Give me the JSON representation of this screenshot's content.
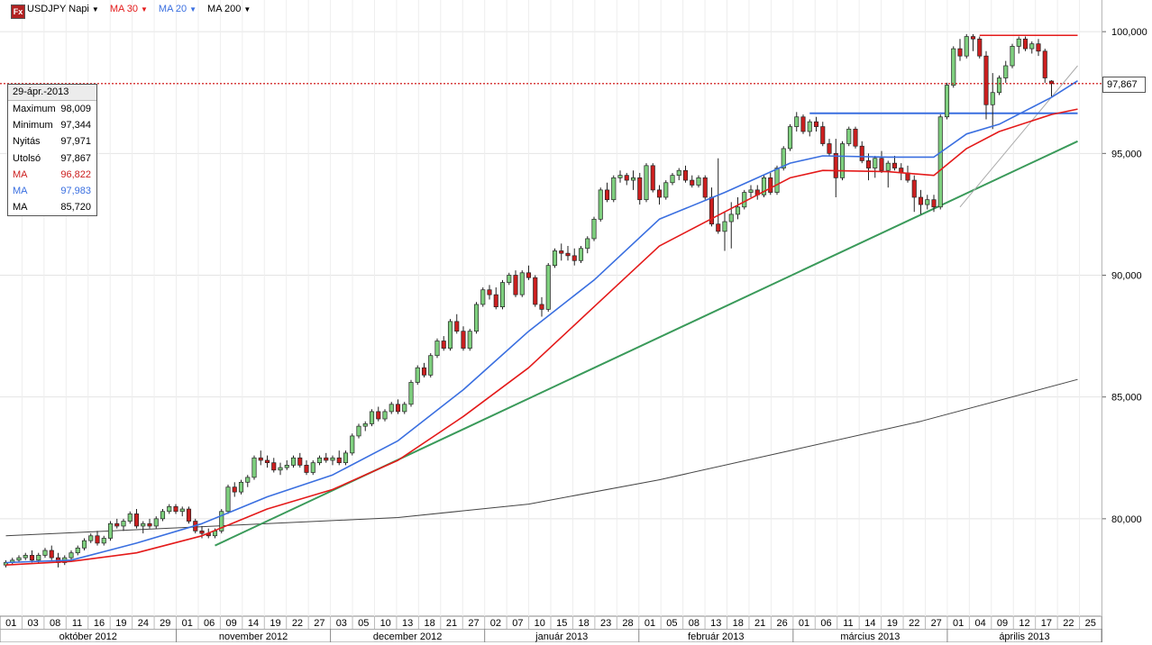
{
  "toolbar": {
    "logo": "Fx",
    "symbol": "USDJPY Napi",
    "ma1": "MA 30",
    "ma2": "MA 20",
    "ma3": "MA 200"
  },
  "colors": {
    "up_candle": "#7fd07f",
    "down_candle": "#cc1f1f",
    "ma30": "#e41a1a",
    "ma20": "#3a6fe0",
    "ma200": "#444444",
    "resistance": "#e41a1a",
    "support": "#3a6fe0",
    "trend_green": "#3a9a5a",
    "trend_grey": "#aaaaaa",
    "last_price_line": "#cc0000"
  },
  "info_box": {
    "date": "29-ápr.-2013",
    "rows": [
      {
        "label": "Maximum",
        "value": "98,009",
        "color": "#000000"
      },
      {
        "label": "Minimum",
        "value": "97,344",
        "color": "#000000"
      },
      {
        "label": "Nyitás",
        "value": "97,971",
        "color": "#000000"
      },
      {
        "label": "Utolsó",
        "value": "97,867",
        "color": "#000000"
      },
      {
        "label": "MA",
        "value": "96,822",
        "color": "#cc1f1f"
      },
      {
        "label": "MA",
        "value": "97,983",
        "color": "#3a6fe0"
      },
      {
        "label": "MA",
        "value": "85,720",
        "color": "#000000"
      }
    ]
  },
  "last_price_label": "97,867",
  "chart_data": {
    "type": "candlestick",
    "ylim": [
      76.0,
      101.3
    ],
    "y_ticks": [
      80,
      85,
      90,
      95,
      100
    ],
    "y_tick_labels": [
      "80,000",
      "85,000",
      "90,000",
      "95,000",
      "100,000"
    ],
    "y_axis_position": "right",
    "grid": true,
    "x_day_labels": [
      "01",
      "03",
      "08",
      "11",
      "16",
      "19",
      "24",
      "29",
      "01",
      "06",
      "09",
      "14",
      "19",
      "22",
      "27",
      "03",
      "05",
      "10",
      "13",
      "18",
      "21",
      "27",
      "02",
      "07",
      "10",
      "15",
      "18",
      "23",
      "28",
      "01",
      "05",
      "08",
      "13",
      "18",
      "21",
      "26",
      "01",
      "06",
      "11",
      "14",
      "19",
      "22",
      "27",
      "01",
      "04",
      "09",
      "12",
      "17",
      "22",
      "25"
    ],
    "x_month_labels": [
      "október 2012",
      "november 2012",
      "december 2012",
      "január 2013",
      "február 2013",
      "március 2013",
      "április 2013"
    ],
    "candles": [
      [
        78.1,
        78.3,
        78.0,
        78.2
      ],
      [
        78.2,
        78.4,
        78.1,
        78.3
      ],
      [
        78.3,
        78.5,
        78.2,
        78.4
      ],
      [
        78.4,
        78.6,
        78.3,
        78.5
      ],
      [
        78.5,
        78.7,
        78.2,
        78.3
      ],
      [
        78.3,
        78.6,
        78.2,
        78.5
      ],
      [
        78.5,
        78.8,
        78.4,
        78.7
      ],
      [
        78.7,
        78.9,
        78.3,
        78.4
      ],
      [
        78.4,
        78.6,
        78.0,
        78.2
      ],
      [
        78.2,
        78.5,
        78.1,
        78.4
      ],
      [
        78.4,
        78.7,
        78.3,
        78.6
      ],
      [
        78.6,
        78.9,
        78.5,
        78.8
      ],
      [
        78.8,
        79.2,
        78.7,
        79.1
      ],
      [
        79.1,
        79.4,
        79.0,
        79.3
      ],
      [
        79.3,
        79.5,
        78.9,
        79.0
      ],
      [
        79.0,
        79.3,
        78.9,
        79.2
      ],
      [
        79.2,
        79.9,
        79.1,
        79.8
      ],
      [
        79.8,
        80.0,
        79.6,
        79.7
      ],
      [
        79.7,
        80.0,
        79.5,
        79.9
      ],
      [
        79.9,
        80.3,
        79.8,
        80.2
      ],
      [
        80.2,
        80.4,
        79.6,
        79.7
      ],
      [
        79.7,
        79.9,
        79.4,
        79.8
      ],
      [
        79.8,
        80.0,
        79.6,
        79.7
      ],
      [
        79.7,
        80.1,
        79.6,
        80.0
      ],
      [
        80.0,
        80.4,
        79.9,
        80.3
      ],
      [
        80.3,
        80.6,
        80.2,
        80.5
      ],
      [
        80.5,
        80.6,
        80.2,
        80.3
      ],
      [
        80.3,
        80.5,
        80.1,
        80.4
      ],
      [
        80.4,
        80.5,
        79.8,
        79.9
      ],
      [
        79.9,
        80.0,
        79.4,
        79.5
      ],
      [
        79.5,
        79.7,
        79.2,
        79.4
      ],
      [
        79.4,
        79.6,
        79.2,
        79.3
      ],
      [
        79.3,
        79.6,
        79.2,
        79.5
      ],
      [
        79.5,
        80.4,
        79.4,
        80.3
      ],
      [
        80.3,
        81.4,
        80.2,
        81.3
      ],
      [
        81.3,
        81.5,
        80.9,
        81.1
      ],
      [
        81.1,
        81.6,
        81.0,
        81.5
      ],
      [
        81.5,
        81.8,
        81.3,
        81.7
      ],
      [
        81.7,
        82.6,
        81.6,
        82.5
      ],
      [
        82.5,
        82.8,
        82.2,
        82.4
      ],
      [
        82.4,
        82.6,
        82.1,
        82.3
      ],
      [
        82.3,
        82.5,
        81.9,
        82.0
      ],
      [
        82.0,
        82.3,
        81.8,
        82.1
      ],
      [
        82.1,
        82.4,
        82.0,
        82.2
      ],
      [
        82.2,
        82.6,
        82.1,
        82.5
      ],
      [
        82.5,
        82.7,
        82.1,
        82.2
      ],
      [
        82.2,
        82.4,
        81.8,
        81.9
      ],
      [
        81.9,
        82.4,
        81.8,
        82.3
      ],
      [
        82.3,
        82.6,
        82.2,
        82.5
      ],
      [
        82.5,
        82.7,
        82.3,
        82.4
      ],
      [
        82.4,
        82.6,
        82.2,
        82.5
      ],
      [
        82.5,
        82.8,
        82.2,
        82.3
      ],
      [
        82.3,
        82.8,
        82.2,
        82.7
      ],
      [
        82.7,
        83.5,
        82.6,
        83.4
      ],
      [
        83.4,
        83.9,
        83.3,
        83.8
      ],
      [
        83.8,
        84.0,
        83.6,
        83.9
      ],
      [
        83.9,
        84.5,
        83.8,
        84.4
      ],
      [
        84.4,
        84.6,
        84.0,
        84.1
      ],
      [
        84.1,
        84.5,
        84.0,
        84.4
      ],
      [
        84.4,
        84.8,
        84.3,
        84.7
      ],
      [
        84.7,
        84.9,
        84.3,
        84.4
      ],
      [
        84.4,
        84.8,
        84.3,
        84.7
      ],
      [
        84.7,
        85.7,
        84.6,
        85.6
      ],
      [
        85.6,
        86.3,
        85.5,
        86.2
      ],
      [
        86.2,
        86.4,
        85.8,
        85.9
      ],
      [
        85.9,
        86.8,
        85.8,
        86.7
      ],
      [
        86.7,
        87.4,
        86.6,
        87.3
      ],
      [
        87.3,
        87.5,
        86.9,
        87.0
      ],
      [
        87.0,
        88.2,
        86.9,
        88.1
      ],
      [
        88.1,
        88.4,
        87.6,
        87.7
      ],
      [
        87.7,
        87.9,
        86.9,
        87.0
      ],
      [
        87.0,
        87.8,
        86.9,
        87.7
      ],
      [
        87.7,
        88.9,
        87.6,
        88.8
      ],
      [
        88.8,
        89.5,
        88.7,
        89.4
      ],
      [
        89.4,
        89.6,
        89.0,
        89.2
      ],
      [
        89.2,
        89.5,
        88.6,
        88.7
      ],
      [
        88.7,
        89.8,
        88.6,
        89.7
      ],
      [
        89.7,
        90.1,
        89.6,
        90.0
      ],
      [
        90.0,
        90.2,
        89.1,
        89.2
      ],
      [
        89.2,
        90.2,
        89.1,
        90.1
      ],
      [
        90.1,
        90.4,
        89.8,
        89.9
      ],
      [
        89.9,
        90.0,
        88.7,
        88.8
      ],
      [
        88.8,
        89.1,
        88.3,
        88.6
      ],
      [
        88.6,
        90.5,
        88.5,
        90.4
      ],
      [
        90.4,
        91.1,
        90.3,
        91.0
      ],
      [
        91.0,
        91.3,
        90.6,
        90.9
      ],
      [
        90.9,
        91.2,
        90.6,
        90.8
      ],
      [
        90.8,
        91.1,
        90.4,
        90.6
      ],
      [
        90.6,
        91.2,
        90.5,
        91.1
      ],
      [
        91.1,
        91.6,
        90.9,
        91.5
      ],
      [
        91.5,
        92.4,
        91.4,
        92.3
      ],
      [
        92.3,
        93.6,
        92.2,
        93.5
      ],
      [
        93.5,
        93.8,
        93.0,
        93.1
      ],
      [
        93.1,
        94.1,
        93.0,
        94.0
      ],
      [
        94.0,
        94.3,
        93.8,
        94.1
      ],
      [
        94.1,
        94.2,
        93.7,
        93.9
      ],
      [
        93.9,
        94.3,
        93.5,
        94.0
      ],
      [
        94.0,
        94.2,
        92.9,
        93.1
      ],
      [
        93.1,
        94.6,
        93.0,
        94.5
      ],
      [
        94.5,
        94.6,
        93.4,
        93.5
      ],
      [
        93.5,
        93.7,
        92.9,
        93.2
      ],
      [
        93.2,
        93.9,
        93.1,
        93.8
      ],
      [
        93.8,
        94.2,
        93.7,
        94.1
      ],
      [
        94.1,
        94.4,
        93.9,
        94.3
      ],
      [
        94.3,
        94.5,
        93.8,
        93.9
      ],
      [
        93.9,
        94.1,
        93.6,
        93.7
      ],
      [
        93.7,
        94.1,
        93.6,
        94.0
      ],
      [
        94.0,
        94.1,
        93.1,
        93.2
      ],
      [
        93.2,
        93.6,
        92.0,
        92.1
      ],
      [
        92.1,
        94.8,
        91.7,
        91.8
      ],
      [
        91.8,
        92.6,
        91.0,
        92.2
      ],
      [
        92.2,
        93.0,
        91.1,
        92.5
      ],
      [
        92.5,
        93.2,
        92.3,
        92.8
      ],
      [
        92.8,
        93.5,
        92.7,
        93.4
      ],
      [
        93.4,
        93.7,
        93.2,
        93.5
      ],
      [
        93.5,
        93.7,
        93.1,
        93.3
      ],
      [
        93.3,
        94.1,
        93.2,
        94.0
      ],
      [
        94.0,
        94.2,
        93.3,
        93.4
      ],
      [
        93.4,
        94.5,
        93.3,
        94.4
      ],
      [
        94.4,
        95.3,
        94.3,
        95.2
      ],
      [
        95.2,
        96.2,
        95.1,
        96.1
      ],
      [
        96.1,
        96.7,
        95.9,
        96.5
      ],
      [
        96.5,
        96.6,
        95.8,
        95.9
      ],
      [
        95.9,
        96.4,
        95.7,
        96.3
      ],
      [
        96.3,
        96.5,
        95.9,
        96.1
      ],
      [
        96.1,
        96.3,
        95.3,
        95.4
      ],
      [
        95.4,
        95.6,
        94.9,
        95.0
      ],
      [
        95.0,
        95.6,
        93.2,
        94.0
      ],
      [
        94.0,
        95.5,
        93.9,
        95.4
      ],
      [
        95.4,
        96.1,
        95.3,
        96.0
      ],
      [
        96.0,
        96.1,
        95.2,
        95.3
      ],
      [
        95.3,
        95.5,
        94.6,
        94.7
      ],
      [
        94.7,
        95.0,
        93.9,
        94.4
      ],
      [
        94.4,
        94.9,
        94.0,
        94.8
      ],
      [
        94.8,
        95.1,
        94.2,
        94.3
      ],
      [
        94.3,
        94.7,
        93.6,
        94.6
      ],
      [
        94.6,
        94.9,
        94.3,
        94.4
      ],
      [
        94.4,
        94.6,
        93.9,
        94.2
      ],
      [
        94.2,
        94.5,
        93.8,
        93.9
      ],
      [
        93.9,
        94.1,
        92.6,
        93.2
      ],
      [
        93.2,
        93.5,
        92.5,
        92.9
      ],
      [
        92.9,
        93.3,
        92.7,
        93.1
      ],
      [
        93.1,
        93.3,
        92.6,
        92.8
      ],
      [
        92.8,
        96.6,
        92.7,
        96.5
      ],
      [
        96.5,
        97.9,
        96.4,
        97.8
      ],
      [
        97.8,
        99.4,
        97.7,
        99.3
      ],
      [
        99.3,
        99.7,
        98.8,
        99.0
      ],
      [
        99.0,
        99.9,
        98.9,
        99.8
      ],
      [
        99.8,
        99.9,
        99.2,
        99.7
      ],
      [
        99.7,
        99.8,
        98.9,
        99.0
      ],
      [
        99.0,
        99.2,
        96.4,
        97.0
      ],
      [
        97.0,
        98.3,
        96.0,
        97.5
      ],
      [
        97.5,
        98.2,
        97.4,
        98.1
      ],
      [
        98.1,
        98.8,
        97.9,
        98.6
      ],
      [
        98.6,
        99.5,
        98.5,
        99.4
      ],
      [
        99.4,
        99.8,
        99.1,
        99.7
      ],
      [
        99.7,
        99.8,
        99.2,
        99.3
      ],
      [
        99.3,
        99.6,
        99.1,
        99.5
      ],
      [
        99.5,
        99.7,
        99.0,
        99.2
      ],
      [
        99.2,
        99.3,
        97.9,
        98.1
      ],
      [
        97.971,
        98.009,
        97.344,
        97.867
      ]
    ],
    "ma30": [
      [
        0,
        78.1
      ],
      [
        10,
        78.25
      ],
      [
        20,
        78.6
      ],
      [
        30,
        79.3
      ],
      [
        40,
        80.4
      ],
      [
        50,
        81.2
      ],
      [
        60,
        82.4
      ],
      [
        70,
        84.2
      ],
      [
        80,
        86.2
      ],
      [
        90,
        88.7
      ],
      [
        100,
        91.2
      ],
      [
        110,
        92.6
      ],
      [
        120,
        94.0
      ],
      [
        125,
        94.3
      ],
      [
        135,
        94.25
      ],
      [
        142,
        94.1
      ],
      [
        147,
        95.2
      ],
      [
        152,
        95.9
      ],
      [
        160,
        96.6
      ],
      [
        164,
        96.82
      ]
    ],
    "ma20": [
      [
        0,
        78.2
      ],
      [
        10,
        78.3
      ],
      [
        20,
        79.0
      ],
      [
        30,
        79.8
      ],
      [
        40,
        80.9
      ],
      [
        50,
        81.8
      ],
      [
        60,
        83.2
      ],
      [
        70,
        85.3
      ],
      [
        80,
        87.7
      ],
      [
        90,
        89.8
      ],
      [
        100,
        92.3
      ],
      [
        110,
        93.4
      ],
      [
        120,
        94.6
      ],
      [
        125,
        94.9
      ],
      [
        135,
        94.85
      ],
      [
        142,
        94.85
      ],
      [
        147,
        95.8
      ],
      [
        152,
        96.2
      ],
      [
        160,
        97.3
      ],
      [
        164,
        97.983
      ]
    ],
    "ma200": [
      [
        0,
        79.3
      ],
      [
        20,
        79.55
      ],
      [
        40,
        79.8
      ],
      [
        60,
        80.05
      ],
      [
        80,
        80.6
      ],
      [
        100,
        81.6
      ],
      [
        120,
        82.8
      ],
      [
        140,
        84.0
      ],
      [
        164,
        85.72
      ]
    ],
    "resistance_line": {
      "from": [
        149,
        99.85
      ],
      "to": [
        164,
        99.85
      ]
    },
    "support_line": {
      "from": [
        123,
        96.65
      ],
      "to": [
        164,
        96.65
      ]
    },
    "green_trendline": {
      "from": [
        32,
        78.9
      ],
      "to": [
        164,
        95.5
      ]
    },
    "grey_trendline": {
      "from": [
        146,
        92.8
      ],
      "to": [
        164,
        98.6
      ]
    },
    "last_price_line": 97.867
  }
}
